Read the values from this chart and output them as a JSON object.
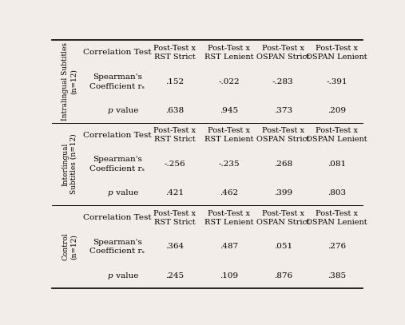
{
  "background_color": "#f2ede8",
  "group_labels": [
    "Intralingual Subtitles\n(n=12)",
    "Interlingual\nSubtitles (n=12)",
    "Control\n(n=12)"
  ],
  "col_headers": [
    "Post-Test x\nRST Strict",
    "Post-Test x\nRST Lenient",
    "Post-Test x\nOSPAN Strict",
    "Post-Test x\nOSPAN Lenient"
  ],
  "spearman_label_line1": "Spearman's",
  "spearman_label_line2": "Coefficient rₛ",
  "p_label_italic": "p",
  "p_label_rest": " value",
  "corr_label": "Correlation Test",
  "data": [
    {
      "spearman": [
        ".152",
        "-.022",
        "-.283",
        "-.391"
      ],
      "p": [
        ".638",
        ".945",
        ".373",
        ".209"
      ]
    },
    {
      "spearman": [
        "-.256",
        "-.235",
        ".268",
        ".081"
      ],
      "p": [
        ".421",
        ".462",
        ".399",
        ".803"
      ]
    },
    {
      "spearman": [
        ".364",
        ".487",
        ".051",
        ".276"
      ],
      "p": [
        ".245",
        ".109",
        ".876",
        ".385"
      ]
    }
  ],
  "fs_body": 7.5,
  "fs_group": 6.5,
  "fs_colhdr": 7.0
}
